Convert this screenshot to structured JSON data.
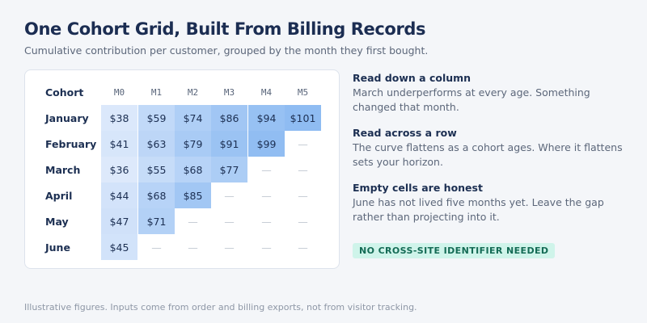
{
  "header": {
    "title": "One Cohort Grid, Built From Billing Records",
    "subtitle": "Cumulative contribution per customer, grouped by the month they first bought."
  },
  "grid": {
    "cohort_header": "Cohort",
    "columns": [
      "M0",
      "M1",
      "M2",
      "M3",
      "M4",
      "M5"
    ],
    "empty_marker": "—",
    "rows": [
      {
        "label": "January",
        "values": [
          38,
          59,
          74,
          86,
          94,
          101
        ]
      },
      {
        "label": "February",
        "values": [
          41,
          63,
          79,
          91,
          99,
          null
        ]
      },
      {
        "label": "March",
        "values": [
          36,
          55,
          68,
          77,
          null,
          null
        ]
      },
      {
        "label": "April",
        "values": [
          44,
          68,
          85,
          null,
          null,
          null
        ]
      },
      {
        "label": "May",
        "values": [
          47,
          71,
          null,
          null,
          null,
          null
        ]
      },
      {
        "label": "June",
        "values": [
          45,
          null,
          null,
          null,
          null,
          null
        ]
      }
    ],
    "currency_prefix": "$",
    "colors": {
      "scale_low": "#dde9fb",
      "scale_high": "#8fbcf2"
    }
  },
  "notes": [
    {
      "title": "Read down a column",
      "body": "March underperforms at every age. Something changed that month."
    },
    {
      "title": "Read across a row",
      "body": "The curve flattens as a cohort ages. Where it flattens sets your horizon."
    },
    {
      "title": "Empty cells are honest",
      "body": "June has not lived five months yet. Leave the gap rather than projecting into it."
    }
  ],
  "badge": "NO CROSS-SITE IDENTIFIER NEEDED",
  "footer": "Illustrative figures. Inputs come from order and billing exports, not from visitor tracking."
}
